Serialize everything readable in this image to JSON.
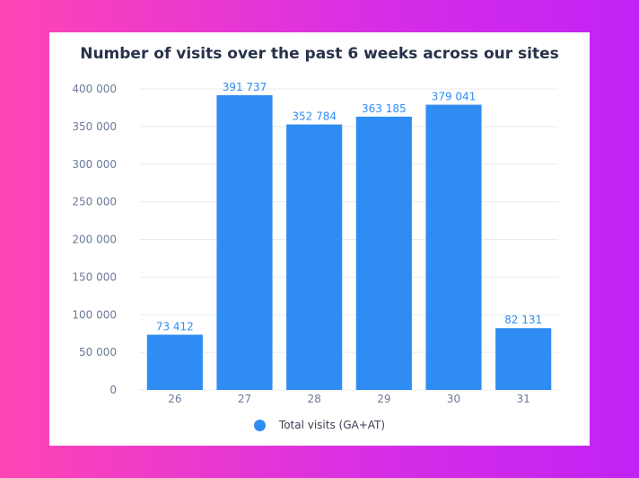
{
  "colors": {
    "bar": "#2f8cf3",
    "grid": "#e8ebef",
    "tick": "#6b7a99",
    "label": "#2f8cf3"
  },
  "chart_data": {
    "type": "bar",
    "title": "Number of visits over the past 6 weeks across our sites",
    "categories": [
      "26",
      "27",
      "28",
      "29",
      "30",
      "31"
    ],
    "series": [
      {
        "name": "Total visits (GA+AT)",
        "values": [
          73412,
          391737,
          352784,
          363185,
          379041,
          82131
        ]
      }
    ],
    "value_labels": [
      "73 412",
      "391 737",
      "352 784",
      "363 185",
      "379 041",
      "82 131"
    ],
    "ylim": [
      0,
      400000
    ],
    "yticks": [
      0,
      50000,
      100000,
      150000,
      200000,
      250000,
      300000,
      350000,
      400000
    ],
    "ytick_labels": [
      "0",
      "50 000",
      "100 000",
      "150 000",
      "200 000",
      "250 000",
      "300 000",
      "350 000",
      "400 000"
    ],
    "xlabel": "",
    "ylabel": "",
    "grid": true,
    "legend_position": "bottom"
  }
}
